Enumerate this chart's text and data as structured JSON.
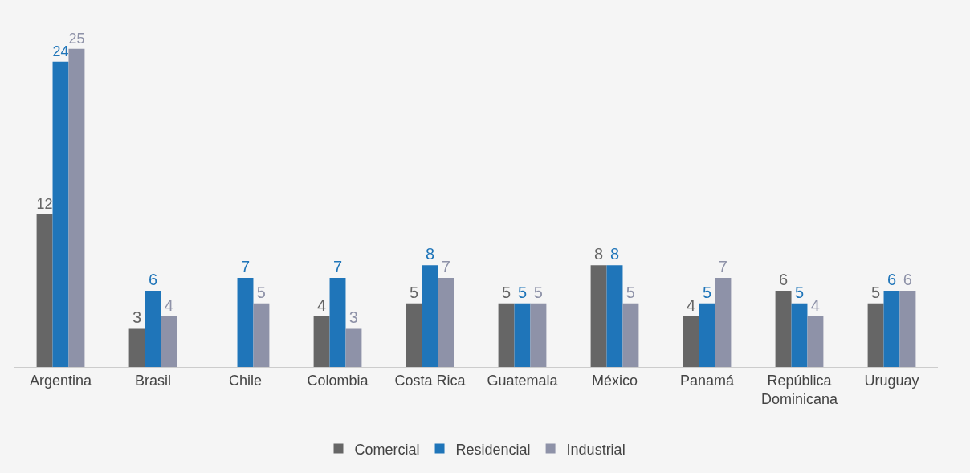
{
  "chart_data": {
    "type": "bar",
    "categories": [
      "Argentina",
      "Brasil",
      "Chile",
      "Colombia",
      "Costa Rica",
      "Guatemala",
      "México",
      "Panamá",
      "República Dominicana",
      "Uruguay"
    ],
    "series": [
      {
        "name": "Comercial",
        "color": "#666666",
        "values": [
          12,
          3,
          null,
          4,
          5,
          5,
          8,
          4,
          6,
          5
        ]
      },
      {
        "name": "Residencial",
        "color": "#1f75b9",
        "values": [
          24,
          6,
          7,
          7,
          8,
          5,
          8,
          5,
          5,
          6
        ]
      },
      {
        "name": "Industrial",
        "color": "#8e92a8",
        "values": [
          25,
          4,
          5,
          3,
          7,
          5,
          5,
          7,
          4,
          6
        ]
      }
    ],
    "data_labels": true,
    "legend": "bottom",
    "tick_labels": "x",
    "grid": false
  }
}
